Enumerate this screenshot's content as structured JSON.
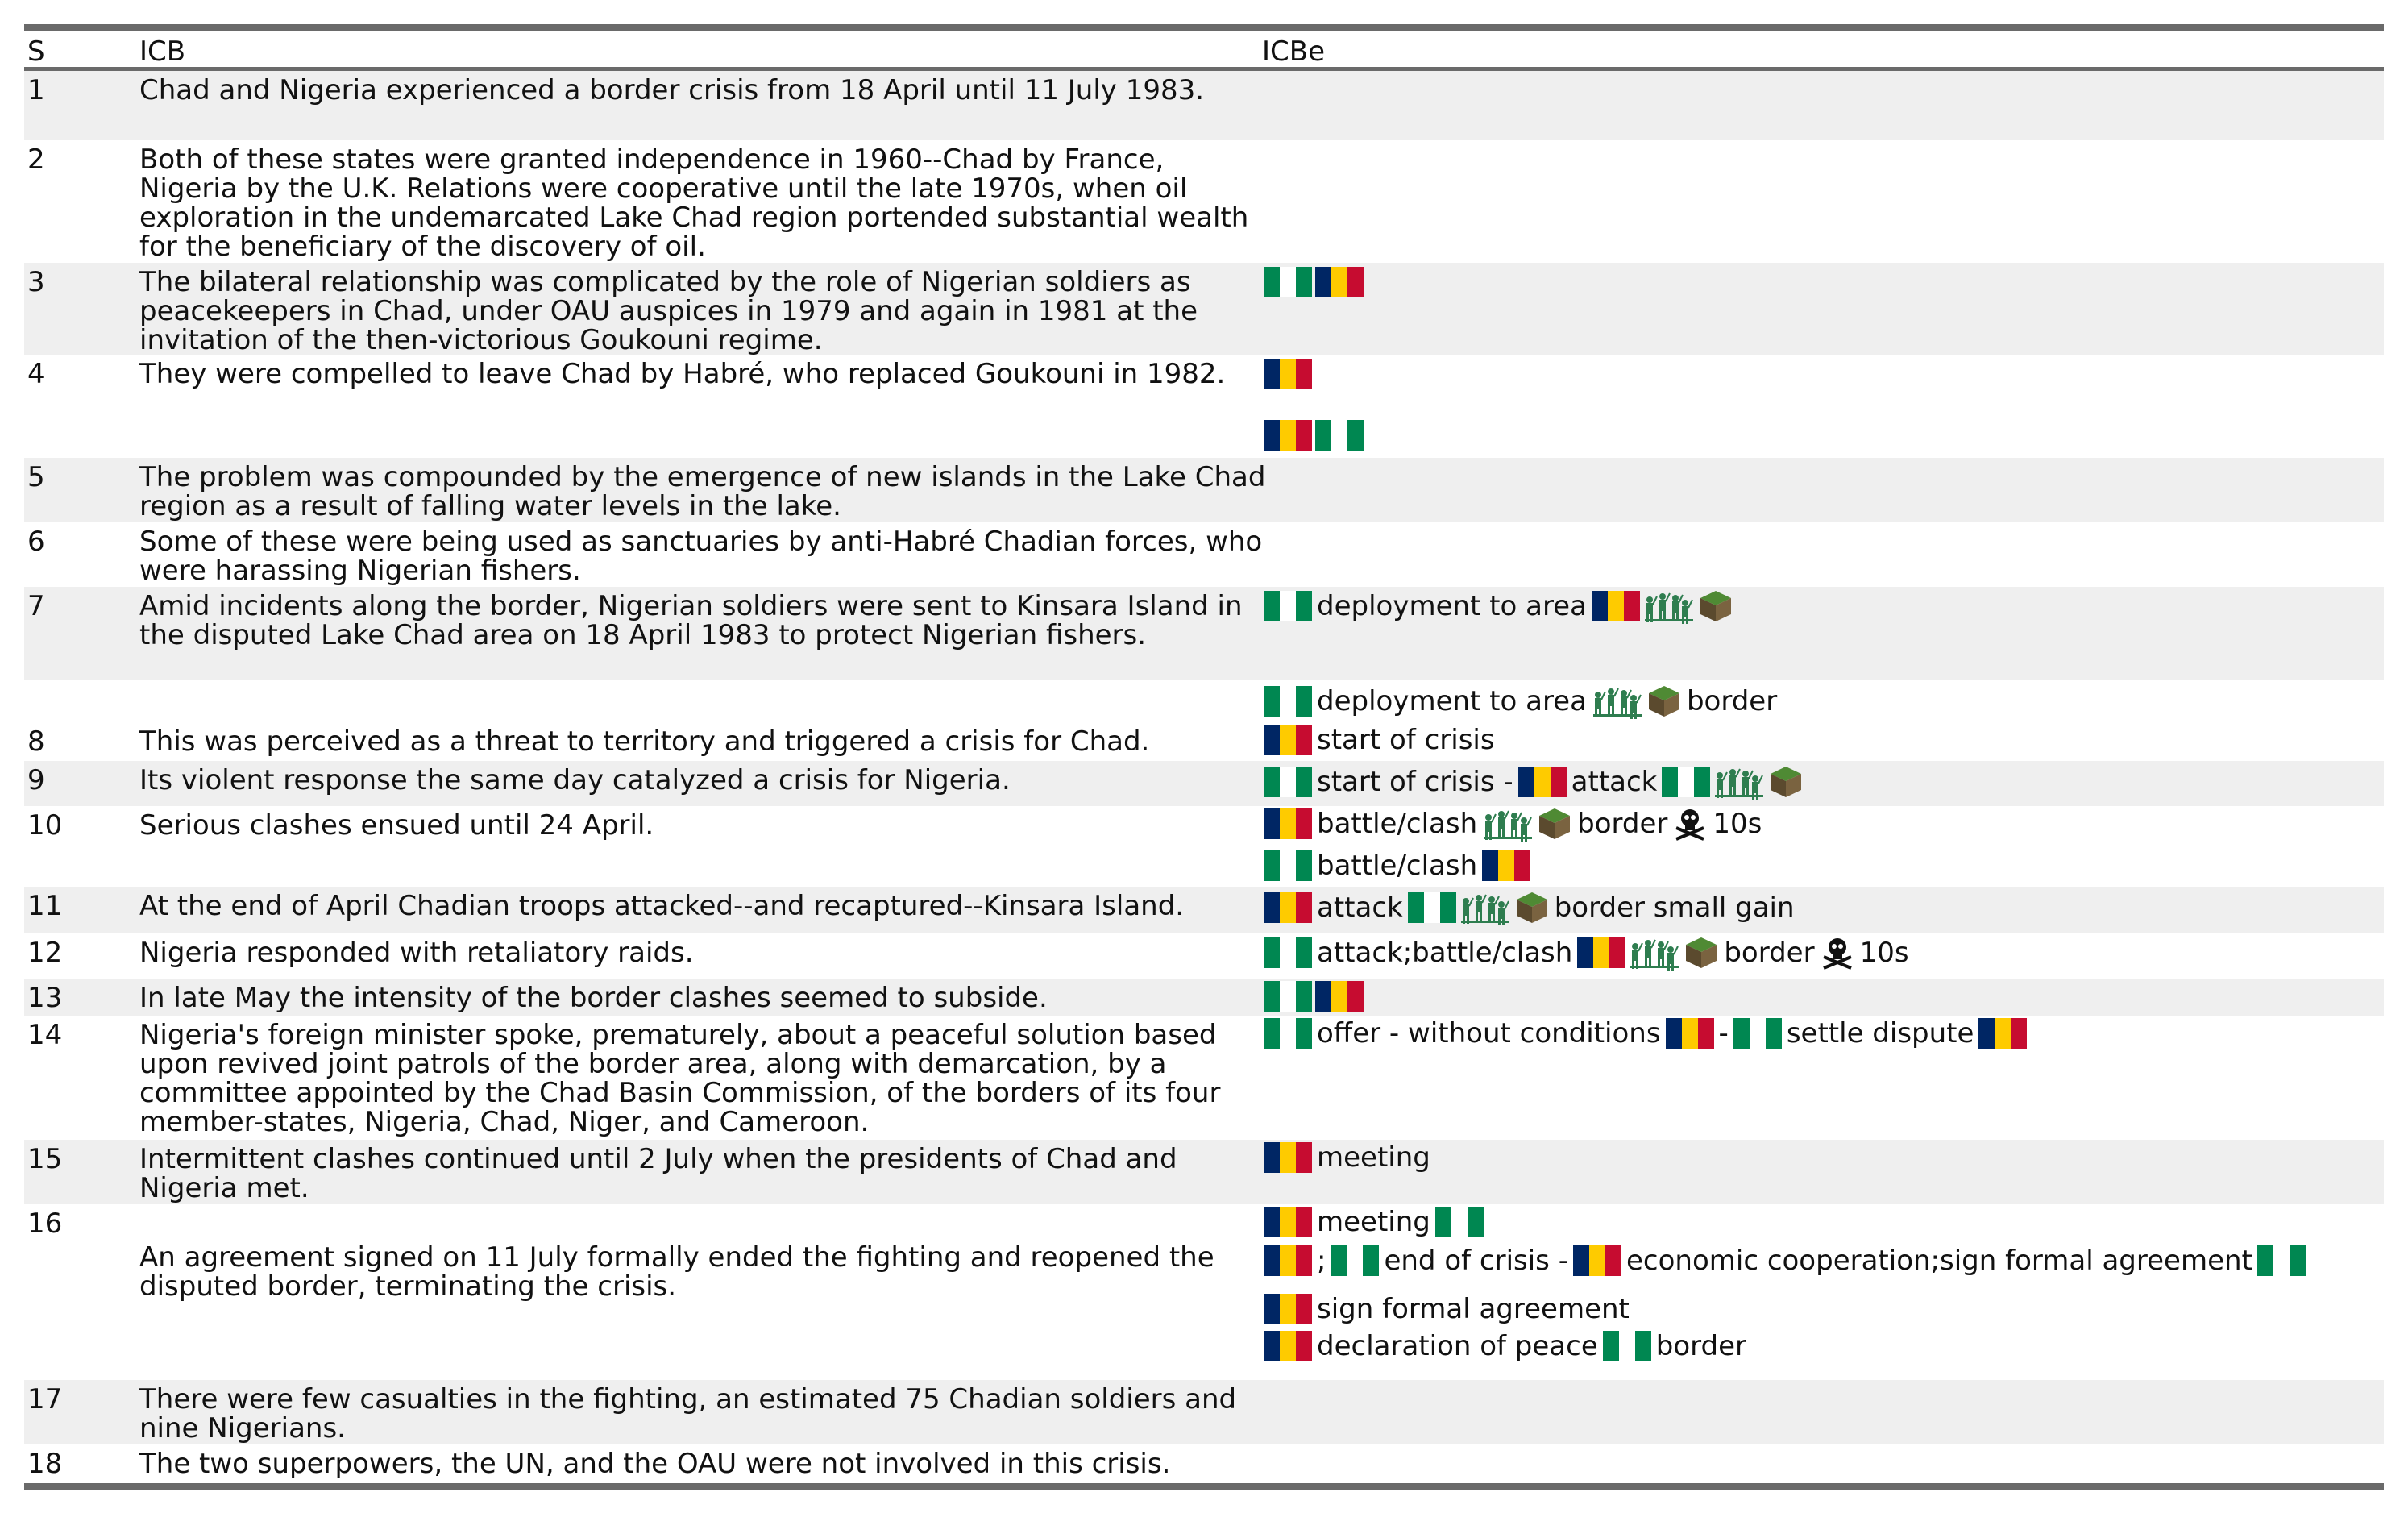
{
  "header": {
    "col_s": "S",
    "col_icb": "ICB",
    "col_icbe": "ICBe"
  },
  "icons": {
    "td": "chad-flag-icon",
    "ng": "nigeria-flag-icon",
    "troops": "soldiers-icon",
    "terr": "territory-block-icon",
    "skull": "skull-crossbones-icon"
  },
  "colors": {
    "chad": [
      "#002664",
      "#fecb00",
      "#c60c30"
    ],
    "nigeria": [
      "#008751",
      "#ffffff",
      "#008751"
    ],
    "troops": "#2e7d4f",
    "territory": "#5b4a2e"
  },
  "rows": [
    {
      "s": "1",
      "icb": "Chad and Nigeria experienced a border crisis from 18 April until 11 July 1983.",
      "events": []
    },
    {
      "s": "2",
      "icb": "Both of these states were granted independence in 1960--Chad by France, Nigeria by the U.K. Relations were cooperative until the late 1970s, when oil exploration in the undemarcated Lake Chad region portended substantial wealth for the beneficiary of the discovery of oil.",
      "events": []
    },
    {
      "s": "3",
      "icb": "The bilateral relationship was complicated by the role of Nigerian soldiers as peacekeepers in Chad, under OAU auspices in 1979 and again in 1981 at the invitation of the then-victorious Goukouni regime.",
      "events": [
        {
          "parts": [
            {
              "i": "ng"
            },
            {
              "i": "td"
            }
          ]
        }
      ]
    },
    {
      "s": "4",
      "icb": "They were compelled to leave Chad by Habré, who replaced Goukouni in 1982.",
      "events": [
        {
          "parts": [
            {
              "i": "td"
            }
          ]
        },
        {
          "parts": [
            {
              "i": "td"
            },
            {
              "i": "ng"
            }
          ]
        }
      ]
    },
    {
      "s": "5",
      "icb": "The problem was compounded by the emergence of new islands in the Lake Chad region as a result of falling water levels in the lake.",
      "events": []
    },
    {
      "s": "6",
      "icb": "Some of these were being used as sanctuaries by anti-Habré Chadian forces, who were harassing Nigerian fishers.",
      "events": []
    },
    {
      "s": "7",
      "icb": "Amid incidents along the border, Nigerian soldiers were sent to Kinsara Island in the disputed Lake Chad area on 18 April 1983 to protect Nigerian fishers.",
      "events": [
        {
          "parts": [
            {
              "i": "ng"
            },
            {
              "t": "deployment to area"
            },
            {
              "i": "td"
            },
            {
              "i": "troops"
            },
            {
              "i": "terr"
            }
          ]
        }
      ]
    },
    {
      "s": "",
      "icb": "",
      "events": [
        {
          "parts": [
            {
              "i": "ng"
            },
            {
              "t": "deployment to area"
            },
            {
              "i": "troops"
            },
            {
              "i": "terr"
            },
            {
              "t": "border"
            }
          ]
        }
      ]
    },
    {
      "s": "8",
      "icb": "This was perceived as a threat to territory and triggered a crisis for Chad.",
      "events": [
        {
          "parts": [
            {
              "i": "td"
            },
            {
              "t": "start of crisis"
            }
          ]
        }
      ]
    },
    {
      "s": "9",
      "icb": "Its violent response the same day catalyzed a crisis for Nigeria.",
      "events": [
        {
          "parts": [
            {
              "i": "ng"
            },
            {
              "t": "start of crisis -"
            },
            {
              "i": "td"
            },
            {
              "t": "attack"
            },
            {
              "i": "ng"
            },
            {
              "i": "troops"
            },
            {
              "i": "terr"
            }
          ]
        }
      ]
    },
    {
      "s": "10",
      "icb": "Serious clashes ensued until 24 April.",
      "events": [
        {
          "parts": [
            {
              "i": "td"
            },
            {
              "t": "battle/clash"
            },
            {
              "i": "troops"
            },
            {
              "i": "terr"
            },
            {
              "t": "border"
            },
            {
              "i": "skull"
            },
            {
              "t": "10s"
            }
          ]
        },
        {
          "parts": [
            {
              "i": "ng"
            },
            {
              "t": "battle/clash"
            },
            {
              "i": "td"
            }
          ]
        }
      ]
    },
    {
      "s": "11",
      "icb": "At the end of April Chadian troops attacked--and recaptured--Kinsara Island.",
      "events": [
        {
          "parts": [
            {
              "i": "td"
            },
            {
              "t": "attack"
            },
            {
              "i": "ng"
            },
            {
              "i": "troops"
            },
            {
              "i": "terr"
            },
            {
              "t": "border small gain"
            }
          ]
        }
      ]
    },
    {
      "s": "12",
      "icb": "Nigeria responded with retaliatory raids.",
      "events": [
        {
          "parts": [
            {
              "i": "ng"
            },
            {
              "t": "attack;battle/clash"
            },
            {
              "i": "td"
            },
            {
              "i": "troops"
            },
            {
              "i": "terr"
            },
            {
              "t": "border"
            },
            {
              "i": "skull"
            },
            {
              "t": "10s"
            }
          ]
        }
      ]
    },
    {
      "s": "13",
      "icb": "In late May the intensity of the border clashes seemed to subside.",
      "events": [
        {
          "parts": [
            {
              "i": "ng"
            },
            {
              "i": "td"
            }
          ]
        }
      ]
    },
    {
      "s": "14",
      "icb": "Nigeria's foreign minister spoke, prematurely, about a peaceful solution based upon revived joint patrols of the border area, along with demarcation, by a committee appointed by the Chad Basin Commission, of the borders of its four member-states, Nigeria, Chad, Niger, and Cameroon.",
      "events": [
        {
          "parts": [
            {
              "i": "ng"
            },
            {
              "t": "offer - without conditions"
            },
            {
              "i": "td"
            },
            {
              "t": "-"
            },
            {
              "i": "ng"
            },
            {
              "t": "settle dispute"
            },
            {
              "i": "td"
            }
          ]
        }
      ]
    },
    {
      "s": "15",
      "icb": "Intermittent clashes continued until 2 July when the presidents of Chad and Nigeria met.",
      "events": [
        {
          "parts": [
            {
              "i": "td"
            },
            {
              "t": "meeting"
            }
          ]
        }
      ]
    },
    {
      "s": "16",
      "icb": "An agreement signed on 11 July formally ended the fighting and reopened the disputed border, terminating the crisis.",
      "events": [
        {
          "parts": [
            {
              "i": "td"
            },
            {
              "t": "meeting"
            },
            {
              "i": "ng"
            }
          ]
        },
        {
          "parts": [
            {
              "i": "td"
            },
            {
              "t": ";"
            },
            {
              "i": "ng"
            },
            {
              "t": "end of crisis -"
            },
            {
              "i": "td"
            },
            {
              "t": "economic cooperation;sign formal agreement"
            },
            {
              "i": "ng"
            }
          ]
        },
        {
          "parts": [
            {
              "i": "td"
            },
            {
              "t": "sign formal agreement"
            }
          ]
        },
        {
          "parts": [
            {
              "i": "td"
            },
            {
              "t": "declaration of peace"
            },
            {
              "i": "ng"
            },
            {
              "t": "border"
            }
          ]
        }
      ]
    },
    {
      "s": "17",
      "icb": "There were few casualties in the fighting, an estimated 75 Chadian soldiers and nine Nigerians.",
      "events": []
    },
    {
      "s": "18",
      "icb": "The two superpowers, the UN, and the OAU were not involved in this crisis.",
      "events": []
    }
  ]
}
